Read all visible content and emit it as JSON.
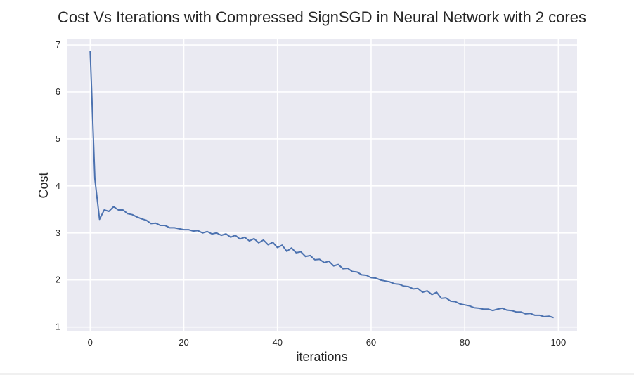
{
  "chart_data": {
    "type": "line",
    "title": "Cost Vs Iterations with Compressed SignSGD in Neural Network with 2 cores",
    "xlabel": "iterations",
    "ylabel": "Cost",
    "xlim": [
      -5,
      104
    ],
    "ylim": [
      0.92,
      7.12
    ],
    "xticks": [
      0,
      20,
      40,
      60,
      80,
      100
    ],
    "yticks": [
      1,
      2,
      3,
      4,
      5,
      6,
      7
    ],
    "grid": true,
    "legend": "none",
    "colors": {
      "line": "#4c72b0",
      "background": "#eaeaf2",
      "grid": "#ffffff"
    },
    "series": [
      {
        "x": [
          0,
          1,
          2,
          3,
          4,
          5,
          6,
          7,
          8,
          9,
          10,
          11,
          12,
          13,
          14,
          15,
          16,
          17,
          18,
          19,
          20,
          21,
          22,
          23,
          24,
          25,
          26,
          27,
          28,
          29,
          30,
          31,
          32,
          33,
          34,
          35,
          36,
          37,
          38,
          39,
          40,
          41,
          42,
          43,
          44,
          45,
          46,
          47,
          48,
          49,
          50,
          51,
          52,
          53,
          54,
          55,
          56,
          57,
          58,
          59,
          60,
          61,
          62,
          63,
          64,
          65,
          66,
          67,
          68,
          69,
          70,
          71,
          72,
          73,
          74,
          75,
          76,
          77,
          78,
          79,
          80,
          81,
          82,
          83,
          84,
          85,
          86,
          87,
          88,
          89,
          90,
          91,
          92,
          93,
          94,
          95,
          96,
          97,
          98,
          99
        ],
        "y": [
          6.87,
          4.15,
          3.29,
          3.49,
          3.46,
          3.56,
          3.49,
          3.49,
          3.41,
          3.39,
          3.34,
          3.3,
          3.27,
          3.2,
          3.21,
          3.16,
          3.16,
          3.11,
          3.11,
          3.09,
          3.07,
          3.07,
          3.04,
          3.05,
          3.0,
          3.03,
          2.98,
          3.0,
          2.95,
          2.98,
          2.91,
          2.95,
          2.87,
          2.91,
          2.83,
          2.88,
          2.79,
          2.85,
          2.75,
          2.8,
          2.69,
          2.74,
          2.61,
          2.68,
          2.58,
          2.6,
          2.5,
          2.52,
          2.43,
          2.44,
          2.37,
          2.4,
          2.3,
          2.33,
          2.24,
          2.25,
          2.18,
          2.17,
          2.11,
          2.1,
          2.05,
          2.04,
          2.0,
          1.98,
          1.96,
          1.92,
          1.91,
          1.87,
          1.86,
          1.81,
          1.82,
          1.74,
          1.77,
          1.69,
          1.74,
          1.61,
          1.62,
          1.55,
          1.54,
          1.49,
          1.47,
          1.45,
          1.41,
          1.4,
          1.38,
          1.38,
          1.35,
          1.38,
          1.4,
          1.36,
          1.35,
          1.32,
          1.32,
          1.28,
          1.29,
          1.25,
          1.25,
          1.22,
          1.23,
          1.2
        ]
      }
    ]
  }
}
